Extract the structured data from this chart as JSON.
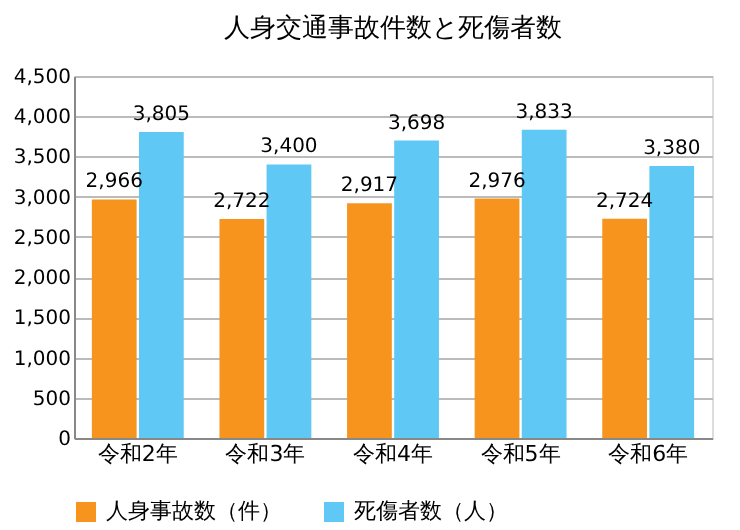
{
  "chart_data": {
    "type": "bar",
    "title": "人身交通事故件数と死傷者数",
    "categories": [
      "令和2年",
      "令和3年",
      "令和4年",
      "令和5年",
      "令和6年"
    ],
    "series": [
      {
        "name": "人身事故数（件）",
        "color": "#f7941d",
        "values": [
          2966,
          2722,
          2917,
          2976,
          2724
        ],
        "value_labels": [
          "2,966",
          "2,722",
          "2,917",
          "2,976",
          "2,724"
        ]
      },
      {
        "name": "死傷者数（人）",
        "color": "#5fc8f4",
        "values": [
          3805,
          3400,
          3698,
          3833,
          3380
        ],
        "value_labels": [
          "3,805",
          "3,400",
          "3,698",
          "3,833",
          "3,380"
        ]
      }
    ],
    "ylim": [
      0,
      4500
    ],
    "yticks": [
      0,
      500,
      {
        "value": 1000,
        "label": "1,000"
      },
      {
        "value": 1500,
        "label": "1,500"
      },
      {
        "value": 2000,
        "label": "2,000"
      },
      {
        "value": 2500,
        "label": "2,500"
      },
      {
        "value": 3000,
        "label": "3,000"
      },
      {
        "value": 3500,
        "label": "3,500"
      },
      {
        "value": 4000,
        "label": "4,000"
      },
      {
        "value": 4500,
        "label": "4,500"
      }
    ],
    "grid": "y",
    "legend": "bottom"
  }
}
